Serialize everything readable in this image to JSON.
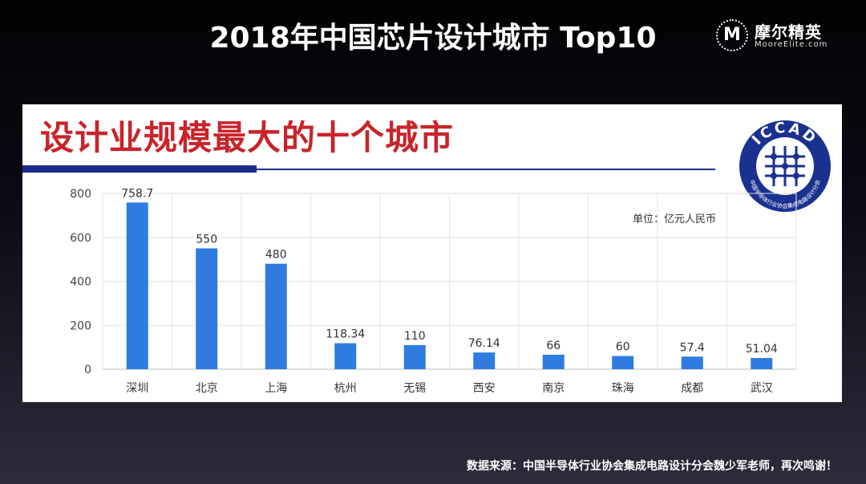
{
  "slide": {
    "title": "2018年中国芯片设计城市 Top10"
  },
  "brand": {
    "badge_letter": "M",
    "name": "摩尔精英",
    "sub": "MooreElite.com"
  },
  "panel": {
    "heading": "设计业规模最大的十个城市",
    "logo_text": "ICCAD",
    "logo_ring_text": "中国半导体行业协会集成电路设计分会",
    "unit_note": "单位：亿元人民币"
  },
  "source_note": "数据来源：中国半导体行业协会集成电路设计分会魏少军老师，再次鸣谢！",
  "colors": {
    "bar": "#2f7be0",
    "heading": "#c8242b",
    "rule": "#1a2b8c"
  },
  "chart_data": {
    "type": "bar",
    "categories": [
      "深圳",
      "北京",
      "上海",
      "杭州",
      "无锡",
      "西安",
      "南京",
      "珠海",
      "成都",
      "武汉"
    ],
    "values": [
      758.7,
      550,
      480,
      118.34,
      110,
      76.14,
      66,
      60,
      57.4,
      51.04
    ],
    "value_labels": [
      "758.7",
      "550",
      "480",
      "118.34",
      "110",
      "76.14",
      "66",
      "60",
      "57.4",
      "51.04"
    ],
    "yticks": [
      0,
      200,
      400,
      600,
      800
    ],
    "ylim": [
      0,
      800
    ],
    "grid": true,
    "legend": "none"
  }
}
